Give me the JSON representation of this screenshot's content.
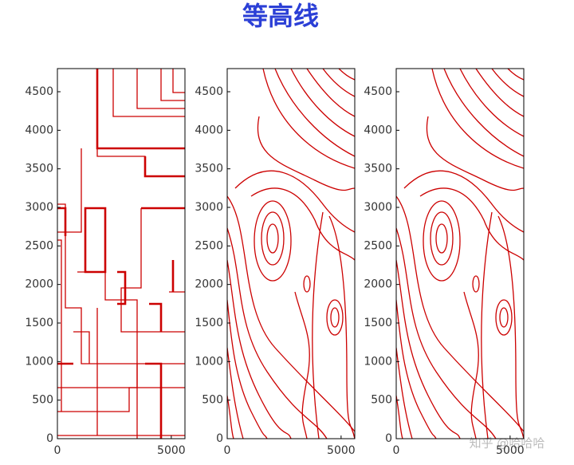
{
  "title": "等高线",
  "watermark": "知乎 @哈哈哈",
  "chart_data": [
    {
      "type": "contour",
      "xlim": [
        0,
        5600
      ],
      "ylim": [
        0,
        4800
      ],
      "xticks": [
        0,
        5000
      ],
      "yticks": [
        0,
        500,
        1000,
        1500,
        2000,
        2500,
        3000,
        3500,
        4000,
        4500
      ]
    },
    {
      "type": "contour",
      "xlim": [
        0,
        5600
      ],
      "ylim": [
        0,
        4800
      ],
      "xticks": [
        0,
        5000
      ],
      "yticks": [
        0,
        500,
        1000,
        1500,
        2000,
        2500,
        3000,
        3500,
        4000,
        4500
      ]
    },
    {
      "type": "contour",
      "xlim": [
        0,
        5600
      ],
      "ylim": [
        0,
        4800
      ],
      "xticks": [
        0,
        5000
      ],
      "yticks": [
        0,
        500,
        1000,
        1500,
        2000,
        2500,
        3000,
        3500,
        4000,
        4500
      ]
    }
  ]
}
